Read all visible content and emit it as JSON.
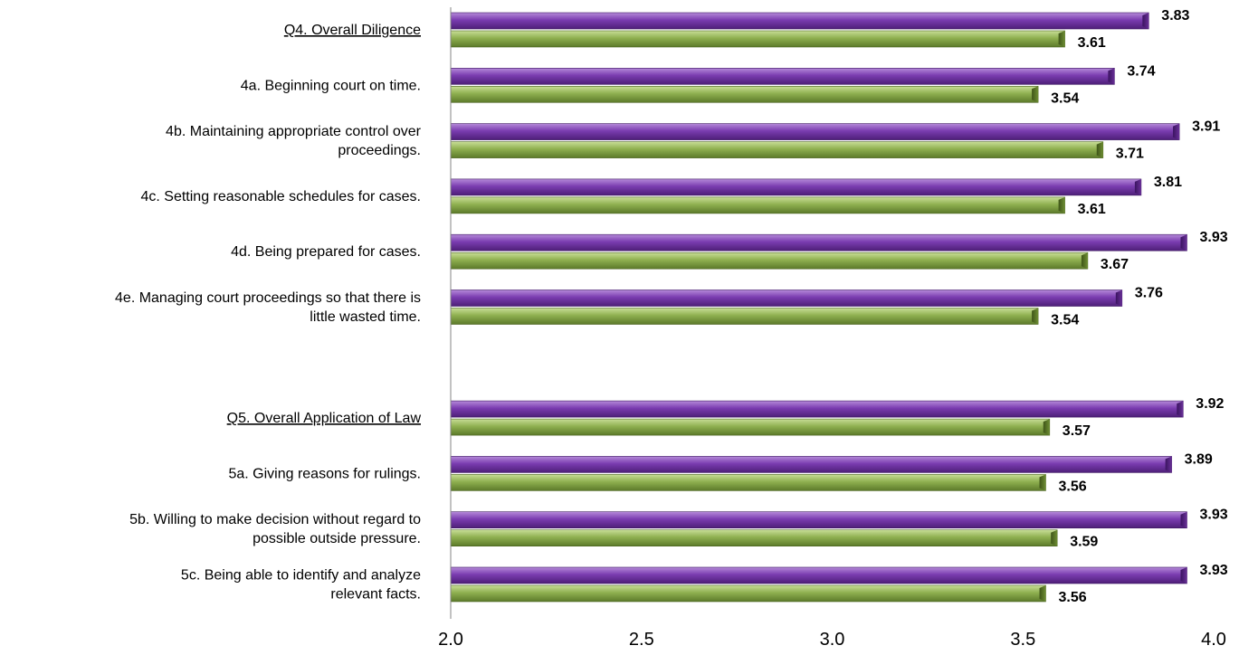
{
  "chart_data": {
    "type": "bar",
    "orientation": "horizontal",
    "xlim": [
      2.0,
      4.0
    ],
    "xticks": [
      "2.0",
      "2.5",
      "3.0",
      "3.5",
      "4.0"
    ],
    "grid": false,
    "legend": "none",
    "colors": {
      "series_a": "#7030A0",
      "series_b": "#77933C"
    },
    "categories": [
      {
        "lines": [
          "Q4. Overall Diligence"
        ],
        "underlined": true
      },
      {
        "lines": [
          "4a. Beginning court on time."
        ]
      },
      {
        "lines": [
          "4b. Maintaining appropriate control over",
          "proceedings."
        ]
      },
      {
        "lines": [
          "4c. Setting reasonable schedules for cases."
        ]
      },
      {
        "lines": [
          "4d. Being prepared for cases."
        ]
      },
      {
        "lines": [
          "4e. Managing court proceedings so that there is",
          "little wasted time."
        ]
      },
      {
        "lines": []
      },
      {
        "lines": [
          "Q5. Overall Application of Law"
        ],
        "underlined": true
      },
      {
        "lines": [
          "5a. Giving reasons for rulings."
        ]
      },
      {
        "lines": [
          "5b. Willing to make decision without regard to",
          "possible outside pressure."
        ]
      },
      {
        "lines": [
          "5c. Being able to identify and analyze",
          "relevant facts."
        ]
      }
    ],
    "series": [
      {
        "values": [
          3.83,
          3.74,
          3.91,
          3.81,
          3.93,
          3.76,
          null,
          3.92,
          3.89,
          3.93,
          3.93
        ],
        "labels": [
          "3.83",
          "3.74",
          "3.91",
          "3.81",
          "3.93",
          "3.76",
          "",
          "3.92",
          "3.89",
          "3.93",
          "3.93"
        ]
      },
      {
        "values": [
          3.61,
          3.54,
          3.71,
          3.61,
          3.67,
          3.54,
          null,
          3.57,
          3.56,
          3.59,
          3.56
        ],
        "labels": [
          "3.61",
          "3.54",
          "3.71",
          "3.61",
          "3.67",
          "3.54",
          "",
          "3.57",
          "3.56",
          "3.59",
          "3.56"
        ]
      }
    ]
  }
}
